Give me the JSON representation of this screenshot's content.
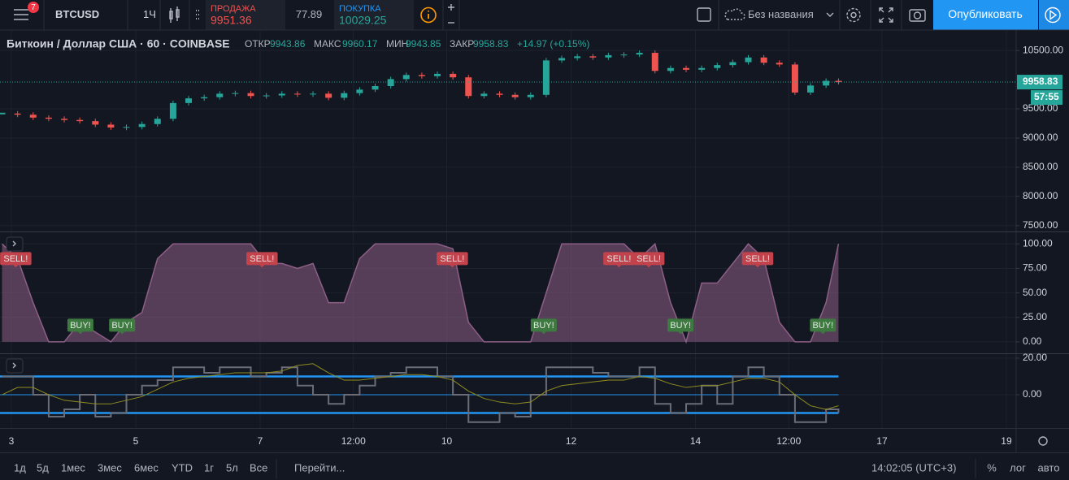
{
  "toolbar": {
    "notifications": 7,
    "symbol": "BTCUSD",
    "interval": "1Ч",
    "sell_label": "ПРОДАЖА",
    "sell_price": 9951.36,
    "spread": 77.89,
    "buy_label": "ПОКУПКА",
    "buy_price": 10029.25,
    "layout_name": "Без названия",
    "publish": "Опубликовать"
  },
  "legend": {
    "title": "Биткоин / Доллар США · 60 · COINBASE",
    "open_label": "ОТКР",
    "open": 9943.86,
    "high_label": "МАКС",
    "high": 9960.17,
    "low_label": "МИН",
    "low": 9943.85,
    "close_label": "ЗАКР",
    "close": 9958.83,
    "change": "+14.97 (+0.15%)"
  },
  "chart_data": [
    {
      "type": "candlestick",
      "up_color": "#26a69a",
      "down_color": "#ef5350",
      "grid": true,
      "xlim": [
        2.817,
        19.157
      ],
      "xticks": [
        3,
        5,
        7,
        {
          "value": 8.5,
          "label": "12:00"
        },
        10,
        12,
        14,
        {
          "value": 15.5,
          "label": "12:00"
        },
        17,
        19
      ],
      "ylim": [
        7400,
        10850
      ],
      "yticks": [
        {
          "value": 10500,
          "label": "10500.00"
        },
        {
          "value": 9500,
          "label": "9500.00"
        },
        {
          "value": 9000,
          "label": "9000.00"
        },
        {
          "value": 8500,
          "label": "8500.00"
        },
        {
          "value": 8000,
          "label": "8000.00"
        },
        {
          "value": 7500,
          "label": "7500.00"
        }
      ],
      "countdown": "57:55",
      "x": [
        2.85,
        3.1,
        3.35,
        3.6,
        3.85,
        4.1,
        4.35,
        4.6,
        4.85,
        5.1,
        5.35,
        5.6,
        5.85,
        6.1,
        6.35,
        6.6,
        6.85,
        7.1,
        7.35,
        7.6,
        7.85,
        8.1,
        8.35,
        8.6,
        8.85,
        9.1,
        9.35,
        9.6,
        9.85,
        10.1,
        10.35,
        10.6,
        10.85,
        11.1,
        11.35,
        11.6,
        11.85,
        12.1,
        12.35,
        12.6,
        12.85,
        13.1,
        13.35,
        13.6,
        13.85,
        14.1,
        14.35,
        14.6,
        14.85,
        15.1,
        15.35,
        15.6,
        15.85,
        16.1,
        16.3
      ],
      "series": [
        {
          "values": [
            9420,
            9400,
            9350,
            9330,
            9310,
            9290,
            9230,
            9180,
            9190,
            9240,
            9330,
            9600,
            9680,
            9700,
            9760,
            9770,
            9720,
            9730,
            9760,
            9750,
            9760,
            9690,
            9770,
            9830,
            9890,
            10010,
            10080,
            10060,
            10100,
            10040,
            9720,
            9760,
            9740,
            9700,
            9740,
            10330,
            10370,
            10400,
            10380,
            10420,
            10430,
            10460,
            10150,
            10200,
            10170,
            10200,
            10250,
            10300,
            10380,
            10290,
            10260,
            9780,
            9900,
            9980,
            9958.83
          ]
        }
      ]
    },
    {
      "type": "area",
      "grid": true,
      "ylim": [
        -10,
        111
      ],
      "yticks": [
        {
          "value": 100,
          "label": "100.00"
        },
        {
          "value": 75,
          "label": "75.00"
        },
        {
          "value": 50,
          "label": "50.00"
        },
        {
          "value": 25,
          "label": "25.00"
        },
        {
          "value": 0,
          "label": "0.00"
        }
      ],
      "x": [
        2.85,
        3.1,
        3.35,
        3.6,
        3.85,
        4.1,
        4.35,
        4.6,
        4.85,
        5.1,
        5.35,
        5.6,
        5.85,
        6.1,
        6.35,
        6.6,
        6.85,
        7.1,
        7.35,
        7.6,
        7.85,
        8.1,
        8.35,
        8.6,
        8.85,
        9.1,
        9.35,
        9.6,
        9.85,
        10.1,
        10.35,
        10.6,
        10.85,
        11.1,
        11.35,
        11.6,
        11.85,
        12.1,
        12.35,
        12.6,
        12.85,
        13.1,
        13.35,
        13.6,
        13.85,
        14.1,
        14.35,
        14.6,
        14.85,
        15.1,
        15.35,
        15.6,
        15.85,
        16.1,
        16.3
      ],
      "series": [
        {
          "color": "#8e5f86",
          "values": [
            100,
            85,
            40,
            0,
            0,
            20,
            10,
            0,
            20,
            30,
            85,
            100,
            100,
            100,
            100,
            100,
            100,
            80,
            80,
            75,
            80,
            40,
            40,
            85,
            100,
            100,
            100,
            100,
            100,
            95,
            20,
            0,
            0,
            0,
            0,
            50,
            100,
            100,
            100,
            100,
            100,
            85,
            100,
            40,
            0,
            60,
            60,
            80,
            100,
            85,
            20,
            0,
            0,
            40,
            100
          ]
        }
      ],
      "signals": [
        {
          "label": "SELL!",
          "x": 3.07,
          "value": 85,
          "color": "#c2434b"
        },
        {
          "label": "BUY!",
          "x": 4.11,
          "value": 17,
          "color": "#3d7a3f"
        },
        {
          "label": "BUY!",
          "x": 4.78,
          "value": 17,
          "color": "#3d7a3f"
        },
        {
          "label": "SELL!",
          "x": 7.03,
          "value": 85,
          "color": "#c2434b"
        },
        {
          "label": "SELL!",
          "x": 10.09,
          "value": 85,
          "color": "#c2434b"
        },
        {
          "label": "BUY!",
          "x": 11.56,
          "value": 17,
          "color": "#3d7a3f"
        },
        {
          "label": "SELL!",
          "x": 12.77,
          "value": 85,
          "color": "#c2434b"
        },
        {
          "label": "SELL!",
          "x": 13.25,
          "value": 85,
          "color": "#c2434b"
        },
        {
          "label": "BUY!",
          "x": 13.76,
          "value": 17,
          "color": "#3d7a3f"
        },
        {
          "label": "SELL!",
          "x": 15.0,
          "value": 85,
          "color": "#c2434b"
        },
        {
          "label": "BUY!",
          "x": 16.05,
          "value": 17,
          "color": "#3d7a3f"
        }
      ]
    },
    {
      "type": "line",
      "grid": true,
      "ylim": [
        -18.2,
        21.8
      ],
      "yticks": [
        {
          "value": 20,
          "label": "20.00"
        },
        {
          "value": 0,
          "label": "0.00"
        }
      ],
      "levels": [
        10,
        0,
        -10
      ],
      "level_color": "#2196f3",
      "x": [
        2.85,
        3.1,
        3.35,
        3.6,
        3.85,
        4.1,
        4.35,
        4.6,
        4.85,
        5.1,
        5.35,
        5.6,
        5.85,
        6.1,
        6.35,
        6.6,
        6.85,
        7.1,
        7.35,
        7.6,
        7.85,
        8.1,
        8.35,
        8.6,
        8.85,
        9.1,
        9.35,
        9.6,
        9.85,
        10.1,
        10.35,
        10.6,
        10.85,
        11.1,
        11.35,
        11.6,
        11.85,
        12.1,
        12.35,
        12.6,
        12.85,
        13.1,
        13.35,
        13.6,
        13.85,
        14.1,
        14.35,
        14.6,
        14.85,
        15.1,
        15.35,
        15.6,
        15.85,
        16.1,
        16.3
      ],
      "series": [
        {
          "color": "#6a6d78",
          "step": true,
          "values": [
            10,
            10,
            0,
            -12,
            -8,
            0,
            -12,
            -10,
            0,
            5,
            8,
            15,
            15,
            12,
            15,
            15,
            10,
            12,
            15,
            5,
            0,
            -5,
            0,
            5,
            10,
            12,
            15,
            15,
            10,
            0,
            -15,
            -15,
            -10,
            -12,
            0,
            15,
            15,
            15,
            12,
            10,
            10,
            15,
            -5,
            -10,
            -5,
            5,
            -5,
            10,
            15,
            10,
            0,
            -15,
            -15,
            -8,
            -10
          ]
        },
        {
          "color": "#8f8d1f",
          "step": false,
          "values": [
            0,
            4,
            4,
            0,
            -3,
            -4,
            -5,
            -5,
            -3,
            -1,
            3,
            7,
            9,
            10,
            11,
            12,
            12,
            12,
            13,
            16,
            17,
            12,
            8,
            8,
            9,
            10,
            11,
            11,
            10,
            8,
            2,
            -2,
            -4,
            -5,
            -4,
            2,
            5,
            6,
            7,
            8,
            8,
            10,
            9,
            6,
            4,
            5,
            5,
            7,
            9,
            9,
            7,
            0,
            -6,
            -8,
            -6
          ]
        }
      ]
    }
  ],
  "bottom_bar": {
    "ranges": [
      "1д",
      "5д",
      "1мес",
      "3мес",
      "6мес",
      "YTD",
      "1г",
      "5л",
      "Все"
    ],
    "goto": "Перейти...",
    "clock": "14:02:05 (UTC+3)",
    "percent": "%",
    "log": "лог",
    "auto": "авто"
  }
}
